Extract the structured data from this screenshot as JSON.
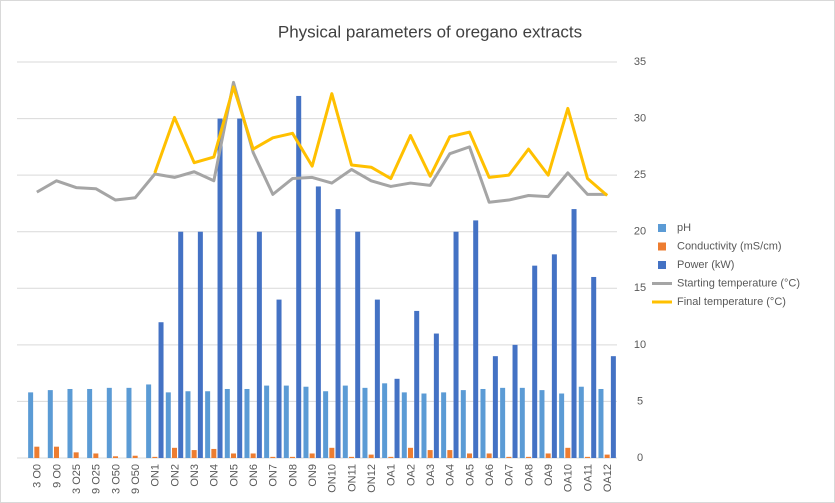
{
  "chart_data": {
    "type": "bar",
    "title": "Physical parameters of oregano extracts",
    "categories": [
      "3 O0",
      "9 O0",
      "3 O25",
      "9 O25",
      "3 O50",
      "9 O50",
      "ON1",
      "ON2",
      "ON3",
      "ON4",
      "ON5",
      "ON6",
      "ON7",
      "ON8",
      "ON9",
      "ON10",
      "ON11",
      "ON12",
      "OA1",
      "OA2",
      "OA3",
      "OA4",
      "OA5",
      "OA6",
      "OA7",
      "OA8",
      "OA9",
      "OA10",
      "OA11",
      "OA12"
    ],
    "series": [
      {
        "name": "pH",
        "type": "bar",
        "color": "#5b9bd5",
        "values": [
          5.8,
          6.0,
          6.1,
          6.1,
          6.2,
          6.2,
          6.5,
          5.8,
          5.9,
          5.9,
          6.1,
          6.1,
          6.4,
          6.4,
          6.3,
          5.9,
          6.4,
          6.2,
          6.6,
          5.8,
          5.7,
          5.8,
          6.0,
          6.1,
          6.2,
          6.2,
          6.0,
          5.7,
          6.3,
          6.1
        ]
      },
      {
        "name": "Conductivity (mS/cm)",
        "type": "bar",
        "color": "#ed7d31",
        "values": [
          1.0,
          1.0,
          0.5,
          0.4,
          0.15,
          0.2,
          0.1,
          0.9,
          0.7,
          0.8,
          0.4,
          0.4,
          0.1,
          0.1,
          0.4,
          0.9,
          0.1,
          0.3,
          0.1,
          0.9,
          0.7,
          0.7,
          0.4,
          0.4,
          0.1,
          0.1,
          0.4,
          0.9,
          0.1,
          0.3
        ]
      },
      {
        "name": "Power (kW)",
        "type": "bar",
        "color": "#4472c4",
        "values": [
          null,
          null,
          null,
          null,
          null,
          null,
          12,
          20,
          20,
          30,
          30,
          20,
          14,
          32,
          24,
          22,
          20,
          14,
          7,
          13,
          11,
          20,
          21,
          9,
          10,
          17,
          18,
          22,
          16,
          9
        ]
      },
      {
        "name": "Starting temperature (°C)",
        "type": "line",
        "color": "#a5a5a5",
        "values": [
          23.5,
          24.5,
          23.9,
          23.8,
          22.8,
          23.0,
          25.1,
          24.8,
          25.3,
          24.5,
          33.2,
          27.0,
          23.3,
          24.7,
          24.8,
          24.3,
          25.5,
          24.5,
          24.0,
          24.3,
          24.1,
          26.9,
          27.5,
          22.6,
          22.8,
          23.2,
          23.1,
          25.2,
          23.3,
          23.3
        ]
      },
      {
        "name": "Final temperature (°C)",
        "type": "line",
        "color": "#ffc000",
        "values": [
          null,
          null,
          null,
          null,
          null,
          null,
          25.2,
          30.1,
          26.1,
          26.6,
          32.8,
          27.3,
          28.3,
          28.7,
          25.8,
          32.2,
          25.9,
          25.7,
          24.7,
          28.5,
          24.9,
          28.4,
          28.8,
          24.8,
          25.0,
          27.3,
          25.0,
          30.9,
          24.7,
          23.2
        ]
      }
    ],
    "ylim": [
      0,
      35
    ],
    "yticks": [
      0,
      5,
      10,
      15,
      20,
      25,
      30,
      35
    ],
    "grid": true,
    "legend": "right"
  }
}
